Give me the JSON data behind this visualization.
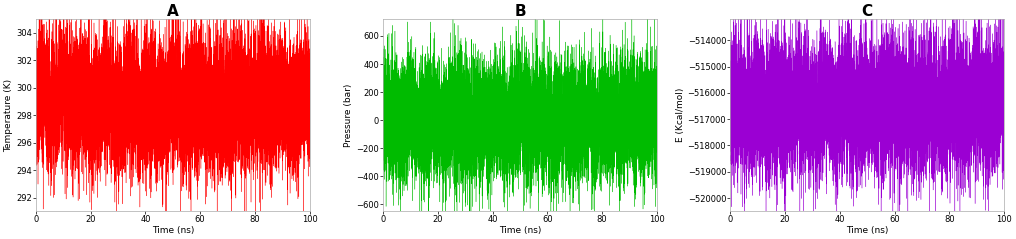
{
  "panels": [
    {
      "label": "A",
      "color": "#ff0000",
      "ylabel": "Temperature (K)",
      "ylim": [
        291,
        305
      ],
      "yticks": [
        292,
        294,
        296,
        298,
        300,
        302,
        304
      ],
      "mean": 299.0,
      "std": 2.5,
      "seed": 42
    },
    {
      "label": "B",
      "color": "#00bb00",
      "ylabel": "Pressure (bar)",
      "ylim": [
        -650,
        720
      ],
      "yticks": [
        -600,
        -400,
        -200,
        0,
        200,
        400,
        600
      ],
      "mean": 0.0,
      "std": 220.0,
      "seed": 43
    },
    {
      "label": "C",
      "color": "#9b00d3",
      "ylabel": "E (Kcal/mol)",
      "ylim": [
        -520500,
        -513200
      ],
      "yticks": [
        -520000,
        -519000,
        -518000,
        -517000,
        -516000,
        -515000,
        -514000
      ],
      "mean": -516500.0,
      "std": 1300.0,
      "seed": 44
    }
  ],
  "xlabel": "Time (ns)",
  "xmax": 100,
  "n_points": 10000,
  "background_color": "#ffffff",
  "title_fontsize": 11,
  "label_fontsize": 6.5,
  "tick_fontsize": 6.0
}
